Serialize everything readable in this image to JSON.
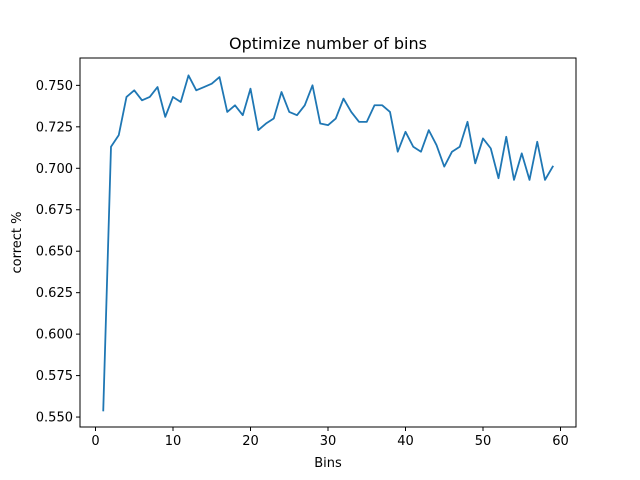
{
  "chart_data": {
    "type": "line",
    "title": "Optimize number of bins",
    "xlabel": "Bins",
    "ylabel": "correct %",
    "xlim": [
      -2.0,
      62.0
    ],
    "ylim": [
      0.544,
      0.7665
    ],
    "xticks": [
      0,
      10,
      20,
      30,
      40,
      50,
      60
    ],
    "yticks": [
      0.55,
      0.575,
      0.6,
      0.625,
      0.65,
      0.675,
      0.7,
      0.725,
      0.75
    ],
    "grid": false,
    "legend": "none",
    "line_color": "#1f77b4",
    "series": [
      {
        "x": [
          1,
          2,
          3,
          4,
          5,
          6,
          7,
          8,
          9,
          10,
          11,
          12,
          13,
          14,
          15,
          16,
          17,
          18,
          19,
          20,
          21,
          22,
          23,
          24,
          25,
          26,
          27,
          28,
          29,
          30,
          31,
          32,
          33,
          34,
          35,
          36,
          37,
          38,
          39,
          40,
          41,
          42,
          43,
          44,
          45,
          46,
          47,
          48,
          49,
          50,
          51,
          52,
          53,
          54,
          55,
          56,
          57,
          58,
          59
        ],
        "values": [
          0.554,
          0.713,
          0.72,
          0.743,
          0.747,
          0.741,
          0.743,
          0.749,
          0.731,
          0.743,
          0.74,
          0.756,
          0.747,
          0.749,
          0.751,
          0.755,
          0.734,
          0.738,
          0.732,
          0.748,
          0.723,
          0.727,
          0.73,
          0.746,
          0.734,
          0.732,
          0.738,
          0.75,
          0.727,
          0.726,
          0.73,
          0.742,
          0.734,
          0.728,
          0.728,
          0.738,
          0.738,
          0.734,
          0.71,
          0.722,
          0.713,
          0.71,
          0.723,
          0.714,
          0.701,
          0.71,
          0.713,
          0.728,
          0.703,
          0.718,
          0.712,
          0.694,
          0.719,
          0.693,
          0.709,
          0.693,
          0.716,
          0.693,
          0.701
        ]
      }
    ]
  }
}
